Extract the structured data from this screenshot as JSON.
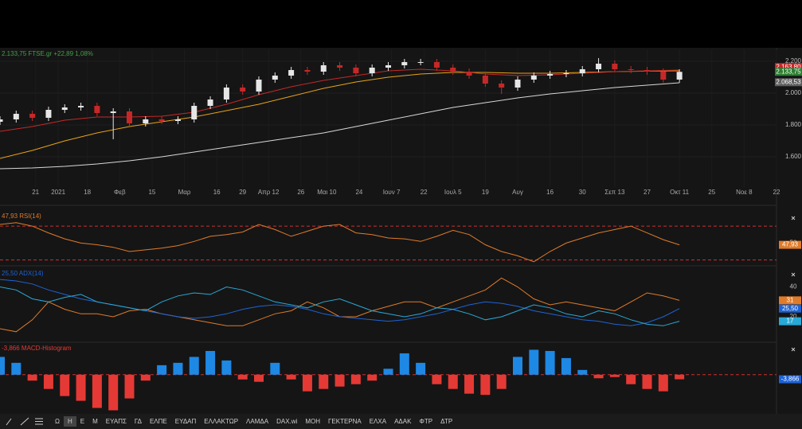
{
  "chart_data": [
    {
      "type": "candlestick",
      "title": "2.133,75 FTSE.gr +22,89 1,08%",
      "title_color": "#43a047",
      "x": [
        0,
        5,
        10,
        15,
        20,
        25,
        30,
        35,
        40,
        45,
        50,
        55,
        60,
        65,
        70,
        75,
        80,
        85,
        90,
        95,
        100,
        105,
        110,
        115,
        120,
        125,
        130,
        135,
        140,
        145,
        150,
        155,
        160,
        165,
        170,
        175,
        180,
        185,
        190,
        195,
        200,
        205,
        210
      ],
      "open": [
        1820,
        1835,
        1870,
        1845,
        1895,
        1910,
        1920,
        1875,
        1885,
        1810,
        1835,
        1825,
        1835,
        1920,
        1960,
        2035,
        2010,
        2085,
        2110,
        2145,
        2135,
        2175,
        2160,
        2125,
        2160,
        2175,
        2195,
        2195,
        2160,
        2135,
        2110,
        2060,
        2035,
        2085,
        2110,
        2120,
        2125,
        2150,
        2185,
        2150,
        2145,
        2135,
        2085
      ],
      "high": [
        1855,
        1890,
        1890,
        1915,
        1930,
        1940,
        1940,
        1905,
        1905,
        1855,
        1855,
        1855,
        1940,
        1980,
        2055,
        2055,
        2105,
        2130,
        2165,
        2165,
        2195,
        2195,
        2180,
        2180,
        2195,
        2215,
        2215,
        2215,
        2180,
        2155,
        2130,
        2080,
        2105,
        2130,
        2140,
        2145,
        2170,
        2220,
        2205,
        2170,
        2165,
        2155,
        2150
      ],
      "low": [
        1800,
        1815,
        1825,
        1825,
        1875,
        1890,
        1855,
        1710,
        1790,
        1790,
        1805,
        1805,
        1815,
        1900,
        1940,
        1990,
        1990,
        2065,
        2090,
        2115,
        2115,
        2140,
        2105,
        2105,
        2140,
        2155,
        2175,
        2140,
        2115,
        2090,
        2040,
        1995,
        2015,
        2065,
        2090,
        2100,
        2105,
        2130,
        2130,
        2125,
        2115,
        2065,
        2065
      ],
      "close": [
        1835,
        1870,
        1845,
        1895,
        1910,
        1920,
        1875,
        1885,
        1810,
        1835,
        1825,
        1835,
        1920,
        1960,
        2035,
        2010,
        2085,
        2110,
        2145,
        2135,
        2175,
        2160,
        2125,
        2160,
        2175,
        2195,
        2195,
        2160,
        2135,
        2110,
        2060,
        2035,
        2085,
        2110,
        2120,
        2125,
        2150,
        2185,
        2150,
        2145,
        2135,
        2085,
        2133.75
      ],
      "up_color": "#e6e6e6",
      "down_color": "#c62828",
      "overlays": [
        {
          "color": "#d8d8d8",
          "x": [
            0,
            10,
            20,
            30,
            40,
            50,
            60,
            70,
            80,
            90,
            100,
            110,
            120,
            130,
            140,
            150,
            160,
            170,
            180,
            190,
            200,
            210
          ],
          "values": [
            1525,
            1530,
            1540,
            1555,
            1575,
            1600,
            1630,
            1660,
            1690,
            1720,
            1750,
            1790,
            1830,
            1870,
            1910,
            1940,
            1970,
            1995,
            2015,
            2035,
            2050,
            2065
          ]
        },
        {
          "color": "#e8a317",
          "x": [
            0,
            10,
            20,
            30,
            40,
            50,
            60,
            70,
            80,
            90,
            100,
            110,
            120,
            130,
            140,
            150,
            160,
            170,
            180,
            190,
            200,
            210
          ],
          "values": [
            1590,
            1640,
            1700,
            1750,
            1790,
            1820,
            1850,
            1890,
            1930,
            1980,
            2030,
            2070,
            2100,
            2120,
            2130,
            2130,
            2125,
            2125,
            2130,
            2135,
            2138,
            2140
          ]
        },
        {
          "color": "#c62828",
          "x": [
            0,
            10,
            20,
            30,
            40,
            50,
            60,
            70,
            80,
            90,
            100,
            110,
            120,
            130,
            140,
            150,
            160,
            170,
            180,
            190,
            200,
            210
          ],
          "values": [
            1760,
            1790,
            1830,
            1850,
            1850,
            1855,
            1880,
            1930,
            1990,
            2040,
            2080,
            2110,
            2140,
            2150,
            2140,
            2120,
            2110,
            2115,
            2125,
            2135,
            2140,
            2145
          ]
        }
      ],
      "xlim": [
        0,
        240
      ],
      "xticks": [
        {
          "value": 11,
          "label": "21"
        },
        {
          "value": 18,
          "label": "2021"
        },
        {
          "value": 27,
          "label": "18"
        },
        {
          "value": 37,
          "label": "Φεβ"
        },
        {
          "value": 47,
          "label": "15"
        },
        {
          "value": 57,
          "label": "Μαρ"
        },
        {
          "value": 67,
          "label": "16"
        },
        {
          "value": 75,
          "label": "29"
        },
        {
          "value": 83,
          "label": "Απρ 12"
        },
        {
          "value": 93,
          "label": "26"
        },
        {
          "value": 101,
          "label": "Μαι 10"
        },
        {
          "value": 111,
          "label": "24"
        },
        {
          "value": 121,
          "label": "Ιουν 7"
        },
        {
          "value": 131,
          "label": "22"
        },
        {
          "value": 140,
          "label": "Ιουλ 5"
        },
        {
          "value": 150,
          "label": "19"
        },
        {
          "value": 160,
          "label": "Αυγ"
        },
        {
          "value": 170,
          "label": "16"
        },
        {
          "value": 180,
          "label": "30"
        },
        {
          "value": 190,
          "label": "Σεπ 13"
        },
        {
          "value": 200,
          "label": "27"
        },
        {
          "value": 210,
          "label": "Οκτ 11"
        },
        {
          "value": 220,
          "label": "25"
        },
        {
          "value": 230,
          "label": "Νοε 8"
        },
        {
          "value": 240,
          "label": "22"
        }
      ],
      "ylim": [
        1410,
        2275
      ],
      "yticks": [
        {
          "value": 1600,
          "label": "1.600"
        },
        {
          "value": 1800,
          "label": "1.800"
        },
        {
          "value": 2000,
          "label": "2.000"
        },
        {
          "value": 2200,
          "label": "2.200"
        }
      ],
      "grid": true,
      "price_labels": [
        {
          "value": 2163.8,
          "label": "2.163,80",
          "color": "#c62828"
        },
        {
          "value": 2133.75,
          "label": "2.133,75",
          "color": "#2e7d32"
        },
        {
          "value": 2068.53,
          "label": "2.068,53",
          "color": "#5f5f5f"
        }
      ]
    },
    {
      "type": "line",
      "title": "47,93 RSI(14)",
      "title_color": "#e07b2a",
      "x": [
        0,
        5,
        10,
        15,
        20,
        25,
        30,
        35,
        40,
        45,
        50,
        55,
        60,
        65,
        70,
        75,
        80,
        85,
        90,
        95,
        100,
        105,
        110,
        115,
        120,
        125,
        130,
        135,
        140,
        145,
        150,
        155,
        160,
        165,
        170,
        175,
        180,
        185,
        190,
        195,
        200,
        205,
        210
      ],
      "xlim": [
        0,
        240
      ],
      "ylim": [
        25,
        87
      ],
      "yticks": [
        50
      ],
      "levels": [
        70,
        30
      ],
      "level_color": "#d32f2f",
      "series": [
        {
          "color": "#e07b2a",
          "last_label": "47,93",
          "values": [
            72,
            74,
            70,
            62,
            55,
            50,
            48,
            45,
            40,
            42,
            44,
            47,
            52,
            58,
            60,
            63,
            72,
            66,
            58,
            64,
            70,
            72,
            62,
            60,
            56,
            55,
            52,
            58,
            65,
            60,
            48,
            40,
            35,
            28,
            40,
            50,
            56,
            62,
            66,
            70,
            62,
            54,
            47.93
          ]
        }
      ]
    },
    {
      "type": "line",
      "title": "25,50 ADX(14)",
      "title_color": "#1e63d6",
      "x": [
        0,
        5,
        10,
        15,
        20,
        25,
        30,
        35,
        40,
        45,
        50,
        55,
        60,
        65,
        70,
        75,
        80,
        85,
        90,
        95,
        100,
        105,
        110,
        115,
        120,
        125,
        130,
        135,
        140,
        145,
        150,
        155,
        160,
        165,
        170,
        175,
        180,
        185,
        190,
        195,
        200,
        205,
        210
      ],
      "xlim": [
        0,
        240
      ],
      "ylim": [
        4,
        52
      ],
      "yticks": [
        20,
        40
      ],
      "series": [
        {
          "color": "#e07b2a",
          "last_label": "31",
          "values": [
            12,
            10,
            18,
            30,
            25,
            22,
            22,
            20,
            24,
            25,
            22,
            20,
            18,
            16,
            14,
            14,
            18,
            22,
            24,
            30,
            26,
            20,
            20,
            24,
            27,
            30,
            30,
            26,
            30,
            34,
            38,
            46,
            40,
            32,
            28,
            30,
            28,
            26,
            24,
            30,
            36,
            34,
            31
          ]
        },
        {
          "color": "#1e63d6",
          "last_label": "25,50",
          "values": [
            45,
            44,
            42,
            38,
            35,
            32,
            30,
            28,
            26,
            24,
            22,
            20,
            19,
            20,
            22,
            25,
            27,
            28,
            27,
            25,
            22,
            20,
            19,
            18,
            17,
            18,
            20,
            22,
            25,
            28,
            30,
            29,
            27,
            24,
            22,
            20,
            18,
            17,
            15,
            14,
            16,
            20,
            25.5
          ]
        },
        {
          "color": "#29a9d6",
          "last_label": "17",
          "values": [
            40,
            38,
            32,
            30,
            33,
            35,
            30,
            28,
            26,
            24,
            30,
            34,
            36,
            35,
            40,
            38,
            34,
            30,
            28,
            26,
            30,
            32,
            28,
            24,
            22,
            20,
            22,
            26,
            25,
            22,
            18,
            20,
            24,
            28,
            26,
            22,
            20,
            24,
            22,
            18,
            15,
            14,
            17
          ]
        }
      ]
    },
    {
      "type": "histogram",
      "title": "-3,866 MACD-Histogram",
      "title_color": "#e53935",
      "x": [
        0,
        5,
        10,
        15,
        20,
        25,
        30,
        35,
        40,
        45,
        50,
        55,
        60,
        65,
        70,
        75,
        80,
        85,
        90,
        95,
        100,
        105,
        110,
        115,
        120,
        125,
        130,
        135,
        140,
        145,
        150,
        155,
        160,
        165,
        170,
        175,
        180,
        185,
        190,
        195,
        200,
        205,
        210
      ],
      "xlim": [
        0,
        240
      ],
      "ylim": [
        -31,
        26
      ],
      "levels": [
        0
      ],
      "level_color": "#d32f2f",
      "up_color": "#1e88e5",
      "down_color": "#e53935",
      "last_label": "-3,866",
      "values": [
        15,
        10,
        -5,
        -12,
        -18,
        -22,
        -28,
        -30,
        -20,
        -5,
        8,
        10,
        15,
        20,
        12,
        -4,
        -6,
        10,
        -4,
        -14,
        -12,
        -10,
        -8,
        -5,
        5,
        18,
        10,
        -8,
        -12,
        -16,
        -17,
        -12,
        15,
        21,
        20,
        14,
        4,
        -3,
        -2,
        -8,
        -12,
        -14,
        -3.866
      ]
    }
  ],
  "toolbar": {
    "timeframes": [
      "Ω",
      "Η",
      "Ε",
      "Μ"
    ],
    "active": "Η",
    "symbols": [
      "ΕΥΑΠΣ",
      "ΓΔ",
      "ΕΛΠΕ",
      "ΕΥΔΑΠ",
      "ΕΛΛΑΚΤΩΡ",
      "ΛΑΜΔΑ",
      "DAX.wi",
      "ΜΟΗ",
      "ΓΕΚΤΕΡΝΑ",
      "ΕΛΧΑ",
      "ΑΔΑΚ",
      "ΦΤΡ",
      "ΔΤΡ"
    ]
  }
}
